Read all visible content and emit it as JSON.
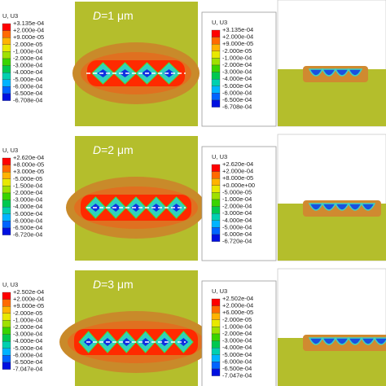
{
  "rows": [
    {
      "left_legend": {
        "title": "U, U3",
        "labels": [
          "+3.135e-04",
          "+2.000e-04",
          "+9.000e-05",
          "-2.000e-05",
          "-1.000e-04",
          "-2.000e-04",
          "-3.000e-04",
          "-4.000e-04",
          "-5.000e-04",
          "-6.000e-04",
          "-6.500e-04",
          "-6.708e-04"
        ]
      },
      "label": {
        "symbol": "D",
        "value": "=1 μm"
      },
      "right_legend": {
        "title": "U, U3",
        "labels": [
          "+3.135e-04",
          "+2.000e-04",
          "+9.000e-05",
          "-2.000e-05",
          "-1.000e-04",
          "-2.000e-04",
          "-3.000e-04",
          "-4.000e-04",
          "-5.000e-04",
          "-6.000e-04",
          "-6.500e-04",
          "-6.708e-04"
        ]
      }
    },
    {
      "left_legend": {
        "title": "U, U3",
        "labels": [
          "+2.620e-04",
          "+8.000e-05",
          "+3.000e-05",
          "-5.000e-05",
          "-1.500e-04",
          "-2.000e-04",
          "-3.000e-04",
          "-4.000e-04",
          "-5.000e-04",
          "-6.000e-04",
          "-6.500e-04",
          "-6.720e-04"
        ]
      },
      "label": {
        "symbol": "D",
        "value": "=2 μm"
      },
      "right_legend": {
        "title": "U, U3",
        "labels": [
          "+2.620e-04",
          "+2.000e-04",
          "+8.000e-05",
          "+0.000e+00",
          "-5.000e-05",
          "-1.000e-04",
          "-2.000e-04",
          "-3.000e-04",
          "-4.000e-04",
          "-5.000e-04",
          "-6.000e-04",
          "-6.720e-04"
        ]
      }
    },
    {
      "left_legend": {
        "title": "U, U3",
        "labels": [
          "+2.502e-04",
          "+2.000e-04",
          "+9.000e-05",
          "-2.000e-05",
          "-1.000e-04",
          "-2.000e-04",
          "-3.000e-04",
          "-4.000e-04",
          "-5.000e-04",
          "-6.000e-04",
          "-6.500e-04",
          "-7.047e-04"
        ]
      },
      "label": {
        "symbol": "D",
        "value": "=3 μm"
      },
      "right_legend": {
        "title": "U, U3",
        "labels": [
          "+2.502e-04",
          "+2.000e-04",
          "+6.000e-05",
          "-2.000e-05",
          "-1.000e-04",
          "-2.000e-04",
          "-3.000e-04",
          "-4.000e-04",
          "-5.000e-04",
          "-6.000e-04",
          "-6.500e-04",
          "-7.047e-04"
        ]
      }
    }
  ]
}
